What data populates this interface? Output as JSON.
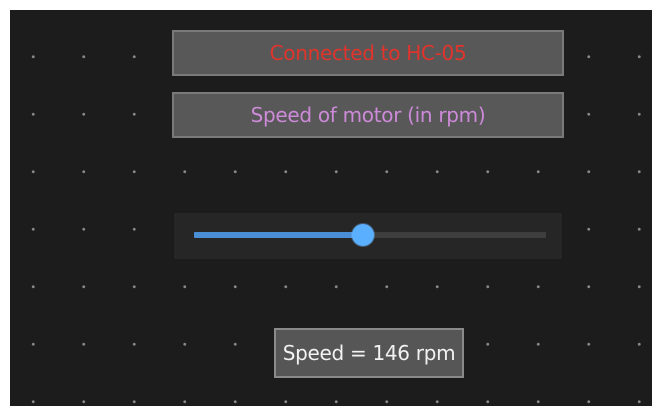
{
  "app": {
    "status_text": "Connected to HC-05",
    "title_text": "Speed of motor (in rpm)",
    "speed_text": "Speed = 146 rpm"
  },
  "slider": {
    "value_fraction": 0.48
  },
  "colors": {
    "status_text": "#e0342c",
    "title_text": "#cd8ad9",
    "slider_active": "#4a8fd6",
    "slider_thumb": "#5ab0ff"
  }
}
